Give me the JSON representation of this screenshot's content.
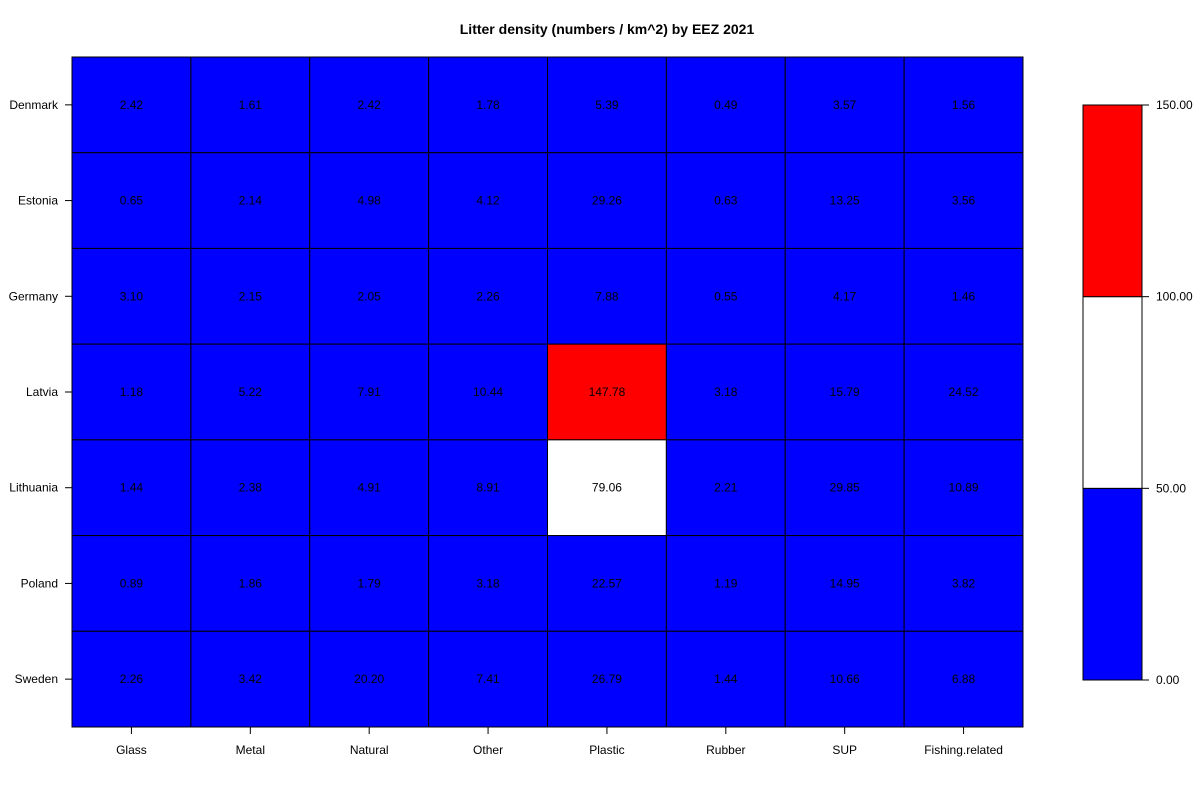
{
  "chart_data": {
    "type": "heatmap",
    "title": "Litter density (numbers / km^2) by EEZ 2021",
    "rows": [
      "Denmark",
      "Estonia",
      "Germany",
      "Latvia",
      "Lithuania",
      "Poland",
      "Sweden"
    ],
    "columns": [
      "Glass",
      "Metal",
      "Natural",
      "Other",
      "Plastic",
      "Rubber",
      "SUP",
      "Fishing.related"
    ],
    "values": [
      [
        2.42,
        1.61,
        2.42,
        1.78,
        5.39,
        0.49,
        3.57,
        1.56
      ],
      [
        0.65,
        2.14,
        4.98,
        4.12,
        29.26,
        0.63,
        13.25,
        3.56
      ],
      [
        3.1,
        2.15,
        2.05,
        2.26,
        7.88,
        0.55,
        4.17,
        1.46
      ],
      [
        1.18,
        5.22,
        7.91,
        10.44,
        147.78,
        3.18,
        15.79,
        24.52
      ],
      [
        1.44,
        2.38,
        4.91,
        8.91,
        79.06,
        2.21,
        29.85,
        10.89
      ],
      [
        0.89,
        1.86,
        1.79,
        3.18,
        22.57,
        1.19,
        14.95,
        3.82
      ],
      [
        2.26,
        3.42,
        20.2,
        7.41,
        26.79,
        1.44,
        10.66,
        6.88
      ]
    ],
    "value_labels": [
      [
        "2.42",
        "1.61",
        "2.42",
        "1.78",
        "5.39",
        "0.49",
        "3.57",
        "1.56"
      ],
      [
        "0.65",
        "2.14",
        "4.98",
        "4.12",
        "29.26",
        "0.63",
        "13.25",
        "3.56"
      ],
      [
        "3.10",
        "2.15",
        "2.05",
        "2.26",
        "7.88",
        "0.55",
        "4.17",
        "1.46"
      ],
      [
        "1.18",
        "5.22",
        "7.91",
        "10.44",
        "147.78",
        "3.18",
        "15.79",
        "24.52"
      ],
      [
        "1.44",
        "2.38",
        "4.91",
        "8.91",
        "79.06",
        "2.21",
        "29.85",
        "10.89"
      ],
      [
        "0.89",
        "1.86",
        "1.79",
        "3.18",
        "22.57",
        "1.19",
        "14.95",
        "3.82"
      ],
      [
        "2.26",
        "3.42",
        "20.20",
        "7.41",
        "26.79",
        "1.44",
        "10.66",
        "6.88"
      ]
    ],
    "color_scale": {
      "breaks": [
        0,
        50,
        100,
        150
      ],
      "break_labels": [
        "0.00",
        "50.00",
        "100.00",
        "150.00"
      ],
      "colors": [
        "#0000ff",
        "#ffffff",
        "#ff0000"
      ]
    },
    "grid": true,
    "legend": "right"
  }
}
